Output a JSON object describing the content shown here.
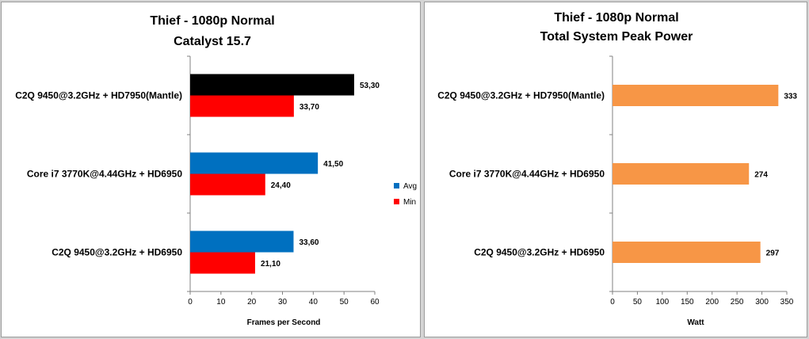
{
  "chart_data": [
    {
      "type": "bar",
      "orientation": "horizontal",
      "title": "Thief - 1080p  Normal",
      "subtitle": "Catalyst 15.7",
      "categories": [
        "C2Q 9450@3.2GHz + HD7950(Mantle)",
        "Core i7 3770K@4.44GHz + HD6950",
        "C2Q 9450@3.2GHz + HD6950"
      ],
      "series": [
        {
          "name": "Avg",
          "color": "#0070c0",
          "values": [
            53.3,
            41.5,
            33.6
          ],
          "labels": [
            "53,30",
            "41,50",
            "33,60"
          ]
        },
        {
          "name": "Min",
          "color": "#ff0000",
          "values": [
            33.7,
            24.4,
            21.1
          ],
          "labels": [
            "33,70",
            "24,40",
            "21,10"
          ]
        }
      ],
      "first_bar_color": "#000000",
      "xlabel": "Frames per Second",
      "xlim": [
        0,
        60
      ],
      "xticks": [
        0,
        10,
        20,
        30,
        40,
        50,
        60
      ],
      "legend": "right"
    },
    {
      "type": "bar",
      "orientation": "horizontal",
      "title": "Thief - 1080p  Normal",
      "subtitle": "Total System Peak Power",
      "categories": [
        "C2Q 9450@3.2GHz + HD7950(Mantle)",
        "Core i7 3770K@4.44GHz + HD6950",
        "C2Q 9450@3.2GHz + HD6950"
      ],
      "series": [
        {
          "name": "Watt",
          "color": "#f79646",
          "values": [
            333,
            274,
            297
          ],
          "labels": [
            "333",
            "274",
            "297"
          ]
        }
      ],
      "xlabel": "Watt",
      "xlim": [
        0,
        350
      ],
      "xticks": [
        0,
        50,
        100,
        150,
        200,
        250,
        300,
        350
      ]
    }
  ]
}
